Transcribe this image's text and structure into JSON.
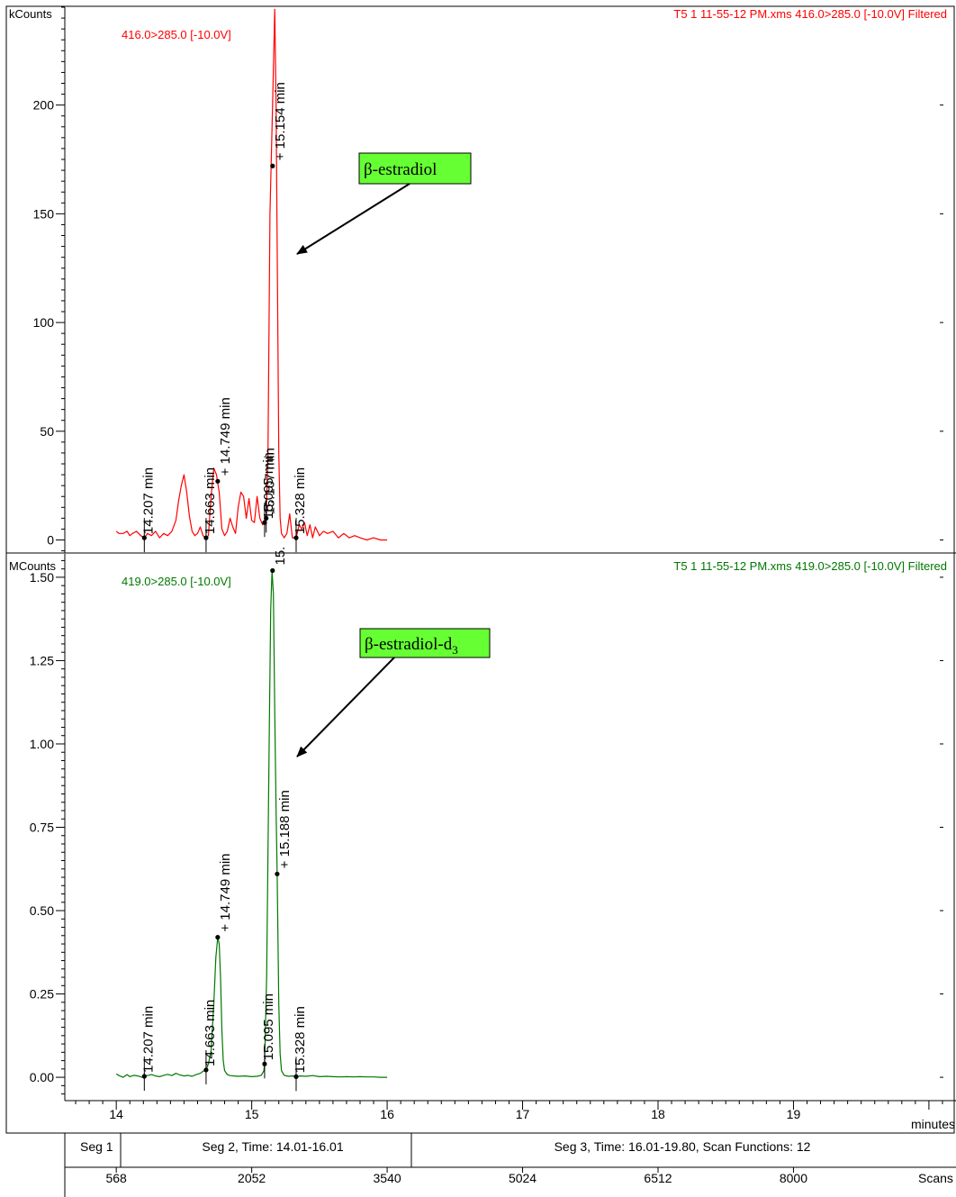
{
  "chart_data": [
    {
      "type": "line",
      "unit_label": "kCounts",
      "header_left": "416.0>285.0 [-10.0V]",
      "header_right": "T5  1  11-55-12 PM.xms 416.0>285.0 [-10.0V] Filtered",
      "color": "#ff0000",
      "ylim": [
        -6,
        245
      ],
      "yticks": [
        0,
        50,
        100,
        150,
        200
      ],
      "ytick_labels": [
        "0",
        "50",
        "100",
        "150",
        "200"
      ],
      "series": [
        {
          "x": [
            14.0,
            14.02,
            14.05,
            14.08,
            14.1,
            14.12,
            14.15,
            14.18,
            14.207,
            14.23,
            14.26,
            14.29,
            14.32,
            14.35,
            14.38,
            14.41,
            14.44,
            14.46,
            14.48,
            14.5,
            14.52,
            14.54,
            14.56,
            14.58,
            14.6,
            14.62,
            14.64,
            14.663,
            14.68,
            14.7,
            14.72,
            14.74,
            14.749,
            14.76,
            14.78,
            14.8,
            14.82,
            14.84,
            14.86,
            14.88,
            14.9,
            14.92,
            14.94,
            14.96,
            14.98,
            15.0,
            15.02,
            15.04,
            15.06,
            15.08,
            15.095,
            15.107,
            15.12,
            15.135,
            15.154,
            15.17,
            15.18,
            15.19,
            15.2,
            15.21,
            15.22,
            15.24,
            15.26,
            15.28,
            15.3,
            15.328,
            15.35,
            15.37,
            15.39,
            15.41,
            15.43,
            15.45,
            15.47,
            15.5,
            15.53,
            15.56,
            15.6,
            15.64,
            15.68,
            15.72,
            15.76,
            15.8,
            15.85,
            15.9,
            15.95,
            16.0
          ],
          "y": [
            4,
            3,
            3,
            4,
            2,
            3,
            4,
            2,
            1,
            3,
            2,
            4,
            1,
            3,
            2,
            4,
            9,
            18,
            25,
            30,
            22,
            11,
            4,
            2,
            3,
            6,
            2,
            1,
            2,
            20,
            33,
            30,
            26,
            22,
            5,
            2,
            4,
            10,
            6,
            3,
            15,
            22,
            20,
            10,
            19,
            9,
            8,
            20,
            10,
            7,
            8,
            10,
            40,
            150,
            200,
            244,
            200,
            120,
            40,
            10,
            3,
            1,
            3,
            12,
            1,
            1,
            7,
            5,
            8,
            2,
            7,
            1,
            6,
            2,
            4,
            3,
            4,
            1,
            3,
            1,
            2,
            1,
            0,
            1,
            0,
            0
          ]
        }
      ],
      "points": [
        {
          "x": 14.207,
          "y": 1,
          "label": "14.207 min",
          "baseline": true
        },
        {
          "x": 14.663,
          "y": 1,
          "label": "14.663 min",
          "baseline": true
        },
        {
          "x": 14.749,
          "y": 27,
          "label": "+ 14.749 min",
          "baseline": false
        },
        {
          "x": 15.095,
          "y": 8,
          "label": "15.095 min",
          "baseline": true
        },
        {
          "x": 15.107,
          "y": 10,
          "label": "15.107 min",
          "baseline": true
        },
        {
          "x": 15.154,
          "y": 172,
          "label": "+ 15.154 min",
          "baseline": false
        },
        {
          "x": 15.328,
          "y": 1,
          "label": "15.328 min",
          "baseline": true
        }
      ],
      "callout": {
        "text": "β-estradiol",
        "subscript": ""
      }
    },
    {
      "type": "line",
      "unit_label": "MCounts",
      "header_left": "419.0>285.0 [-10.0V]",
      "header_right": "T5  1  11-55-12 PM.xms 419.0>285.0 [-10.0V] Filtered",
      "color": "#007800",
      "ylim": [
        -0.07,
        1.57
      ],
      "yticks": [
        0,
        0.25,
        0.5,
        0.75,
        1.0,
        1.25,
        1.5
      ],
      "ytick_labels": [
        "0.00",
        "0.25",
        "0.50",
        "0.75",
        "1.00",
        "1.25",
        "1.50"
      ],
      "series": [
        {
          "x": [
            14.0,
            14.02,
            14.05,
            14.08,
            14.1,
            14.13,
            14.16,
            14.19,
            14.207,
            14.23,
            14.26,
            14.29,
            14.32,
            14.35,
            14.38,
            14.41,
            14.44,
            14.47,
            14.5,
            14.53,
            14.56,
            14.59,
            14.62,
            14.64,
            14.663,
            14.68,
            14.7,
            14.72,
            14.735,
            14.749,
            14.76,
            14.77,
            14.78,
            14.79,
            14.8,
            14.82,
            14.84,
            14.87,
            14.9,
            14.95,
            15.0,
            15.04,
            15.07,
            15.09,
            15.095,
            15.11,
            15.13,
            15.14,
            15.15,
            15.16,
            15.17,
            15.18,
            15.188,
            15.2,
            15.21,
            15.22,
            15.24,
            15.27,
            15.3,
            15.328,
            15.36,
            15.4,
            15.45,
            15.5,
            15.55,
            15.6,
            15.65,
            15.7,
            15.75,
            15.8,
            15.85,
            15.9,
            15.95,
            16.0
          ],
          "y": [
            0.01,
            0.005,
            0.0,
            0.008,
            0.002,
            0.006,
            0.004,
            0.0,
            0.003,
            0.005,
            0.008,
            0.004,
            0.002,
            0.006,
            0.009,
            0.005,
            0.012,
            0.007,
            0.004,
            0.006,
            0.003,
            0.008,
            0.012,
            0.018,
            0.022,
            0.04,
            0.08,
            0.22,
            0.36,
            0.42,
            0.4,
            0.3,
            0.14,
            0.05,
            0.02,
            0.008,
            0.005,
            0.004,
            0.003,
            0.004,
            0.002,
            0.003,
            0.006,
            0.02,
            0.04,
            0.3,
            1.05,
            1.4,
            1.52,
            1.45,
            1.1,
            0.8,
            0.61,
            0.22,
            0.07,
            0.02,
            0.006,
            0.003,
            0.004,
            0.002,
            0.004,
            0.003,
            0.005,
            0.002,
            0.003,
            0.002,
            0.001,
            0.002,
            0.001,
            0.002,
            0.001,
            0.001,
            0.0,
            0.0
          ]
        }
      ],
      "points": [
        {
          "x": 14.207,
          "y": 0.003,
          "label": "14.207 min",
          "baseline": true
        },
        {
          "x": 14.663,
          "y": 0.022,
          "label": "14.663 min",
          "baseline": true
        },
        {
          "x": 14.749,
          "y": 0.42,
          "label": "+ 14.749 min",
          "baseline": false
        },
        {
          "x": 15.095,
          "y": 0.04,
          "label": "15.095 min",
          "baseline": true
        },
        {
          "x": 15.154,
          "y": 1.52,
          "label": "15.",
          "baseline": false
        },
        {
          "x": 15.188,
          "y": 0.61,
          "label": "+ 15.188 min",
          "baseline": false
        },
        {
          "x": 15.328,
          "y": 0.002,
          "label": "15.328 min",
          "baseline": true
        }
      ],
      "callout": {
        "text": "β-estradiol-d",
        "subscript": "3"
      }
    }
  ],
  "x_axis": {
    "unit_label": "minutes",
    "xlim": [
      13.62,
      20.2
    ],
    "ticks": [
      14,
      15,
      16,
      17,
      18,
      19
    ],
    "tick_labels": [
      "14",
      "15",
      "16",
      "17",
      "18",
      "19"
    ]
  },
  "segments": [
    {
      "label": "Seg 1"
    },
    {
      "label": "Seg 2, Time: 14.01-16.01"
    },
    {
      "label": "Seg 3, Time: 16.01-19.80, Scan Functions: 12"
    }
  ],
  "scans": {
    "unit_label": "Scans",
    "ticks": [
      {
        "x": 14.0,
        "label": "568"
      },
      {
        "x": 15.0,
        "label": "2052"
      },
      {
        "x": 16.0,
        "label": "3540"
      },
      {
        "x": 17.0,
        "label": "5024"
      },
      {
        "x": 18.0,
        "label": "6512"
      },
      {
        "x": 19.0,
        "label": "8000"
      }
    ]
  }
}
